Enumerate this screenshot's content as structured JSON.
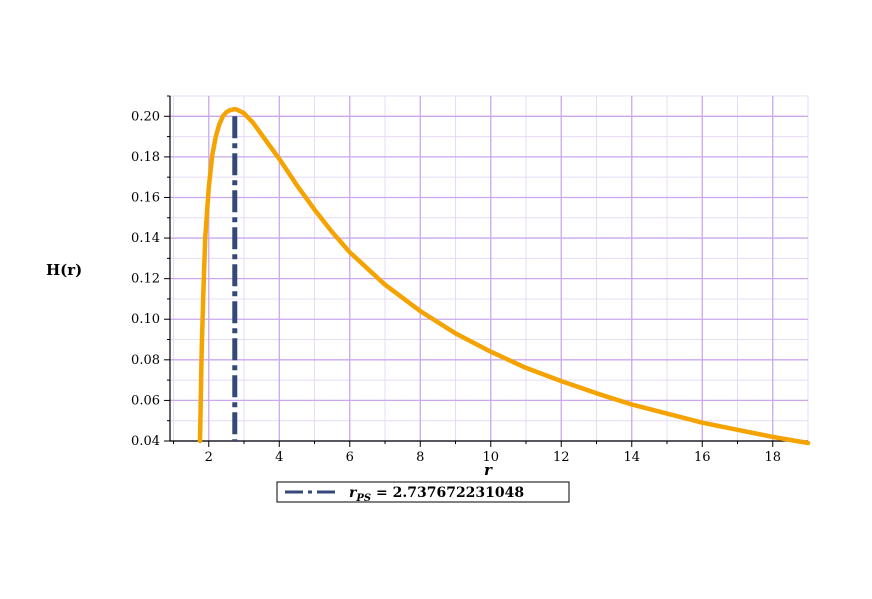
{
  "chart_data": {
    "type": "line",
    "xlabel": "r",
    "ylabel": "H(r)",
    "xlim": [
      0.9,
      19
    ],
    "ylim": [
      0.04,
      0.21
    ],
    "x_ticks": [
      2,
      4,
      6,
      8,
      10,
      12,
      14,
      16,
      18
    ],
    "y_ticks": [
      0.04,
      0.06,
      0.08,
      0.1,
      0.12,
      0.14,
      0.16,
      0.18,
      0.2
    ],
    "x_tick_labels": [
      "2",
      "4",
      "6",
      "8",
      "10",
      "12",
      "14",
      "16",
      "18"
    ],
    "y_tick_labels": [
      "0.04",
      "0.06",
      "0.08",
      "0.10",
      "0.12",
      "0.14",
      "0.16",
      "0.18",
      "0.20"
    ],
    "grid": true,
    "series": [
      {
        "color": "#f5a300",
        "style": "solid",
        "x": [
          1.75,
          1.8,
          1.85,
          1.9,
          2.0,
          2.1,
          2.2,
          2.3,
          2.4,
          2.5,
          2.6,
          2.7,
          2.74,
          2.8,
          3.0,
          3.25,
          3.5,
          4.0,
          4.5,
          5.0,
          5.5,
          6.0,
          7.0,
          8.0,
          9.0,
          10.0,
          11.0,
          12.0,
          13.0,
          14.0,
          15.0,
          16.0,
          17.0,
          18.0,
          19.0
        ],
        "y": [
          0.04,
          0.085,
          0.115,
          0.14,
          0.165,
          0.181,
          0.19,
          0.196,
          0.2,
          0.202,
          0.203,
          0.2034,
          0.2035,
          0.2033,
          0.2015,
          0.197,
          0.191,
          0.179,
          0.166,
          0.154,
          0.143,
          0.133,
          0.117,
          0.104,
          0.093,
          0.084,
          0.076,
          0.0695,
          0.0635,
          0.058,
          0.0535,
          0.049,
          0.0455,
          0.042,
          0.039
        ]
      }
    ],
    "vertical_line": {
      "x": 2.737672231048,
      "color": "#34497a",
      "style": "dashdot"
    },
    "legend": {
      "label_main": "r",
      "label_sub": "PS",
      "label_rest": " = 2.737672231048",
      "position": "bottom"
    }
  }
}
